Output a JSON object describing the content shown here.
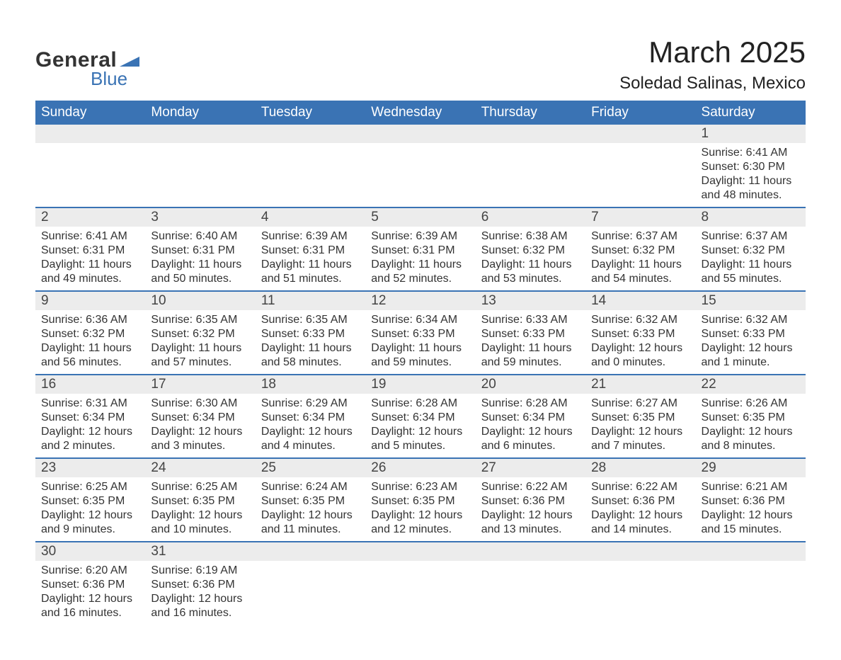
{
  "logo": {
    "word1": "General",
    "word2": "Blue",
    "flag_color": "#3a73b4",
    "text_color": "#333333"
  },
  "title": "March 2025",
  "location": "Soledad Salinas, Mexico",
  "colors": {
    "header_bg": "#3a73b4",
    "header_text": "#ffffff",
    "daynum_bg": "#ececec",
    "border": "#3a73b4",
    "body_text": "#333333"
  },
  "day_headers": [
    "Sunday",
    "Monday",
    "Tuesday",
    "Wednesday",
    "Thursday",
    "Friday",
    "Saturday"
  ],
  "weeks": [
    [
      null,
      null,
      null,
      null,
      null,
      null,
      {
        "n": "1",
        "sunrise": "Sunrise: 6:41 AM",
        "sunset": "Sunset: 6:30 PM",
        "daylight": "Daylight: 11 hours and 48 minutes."
      }
    ],
    [
      {
        "n": "2",
        "sunrise": "Sunrise: 6:41 AM",
        "sunset": "Sunset: 6:31 PM",
        "daylight": "Daylight: 11 hours and 49 minutes."
      },
      {
        "n": "3",
        "sunrise": "Sunrise: 6:40 AM",
        "sunset": "Sunset: 6:31 PM",
        "daylight": "Daylight: 11 hours and 50 minutes."
      },
      {
        "n": "4",
        "sunrise": "Sunrise: 6:39 AM",
        "sunset": "Sunset: 6:31 PM",
        "daylight": "Daylight: 11 hours and 51 minutes."
      },
      {
        "n": "5",
        "sunrise": "Sunrise: 6:39 AM",
        "sunset": "Sunset: 6:31 PM",
        "daylight": "Daylight: 11 hours and 52 minutes."
      },
      {
        "n": "6",
        "sunrise": "Sunrise: 6:38 AM",
        "sunset": "Sunset: 6:32 PM",
        "daylight": "Daylight: 11 hours and 53 minutes."
      },
      {
        "n": "7",
        "sunrise": "Sunrise: 6:37 AM",
        "sunset": "Sunset: 6:32 PM",
        "daylight": "Daylight: 11 hours and 54 minutes."
      },
      {
        "n": "8",
        "sunrise": "Sunrise: 6:37 AM",
        "sunset": "Sunset: 6:32 PM",
        "daylight": "Daylight: 11 hours and 55 minutes."
      }
    ],
    [
      {
        "n": "9",
        "sunrise": "Sunrise: 6:36 AM",
        "sunset": "Sunset: 6:32 PM",
        "daylight": "Daylight: 11 hours and 56 minutes."
      },
      {
        "n": "10",
        "sunrise": "Sunrise: 6:35 AM",
        "sunset": "Sunset: 6:32 PM",
        "daylight": "Daylight: 11 hours and 57 minutes."
      },
      {
        "n": "11",
        "sunrise": "Sunrise: 6:35 AM",
        "sunset": "Sunset: 6:33 PM",
        "daylight": "Daylight: 11 hours and 58 minutes."
      },
      {
        "n": "12",
        "sunrise": "Sunrise: 6:34 AM",
        "sunset": "Sunset: 6:33 PM",
        "daylight": "Daylight: 11 hours and 59 minutes."
      },
      {
        "n": "13",
        "sunrise": "Sunrise: 6:33 AM",
        "sunset": "Sunset: 6:33 PM",
        "daylight": "Daylight: 11 hours and 59 minutes."
      },
      {
        "n": "14",
        "sunrise": "Sunrise: 6:32 AM",
        "sunset": "Sunset: 6:33 PM",
        "daylight": "Daylight: 12 hours and 0 minutes."
      },
      {
        "n": "15",
        "sunrise": "Sunrise: 6:32 AM",
        "sunset": "Sunset: 6:33 PM",
        "daylight": "Daylight: 12 hours and 1 minute."
      }
    ],
    [
      {
        "n": "16",
        "sunrise": "Sunrise: 6:31 AM",
        "sunset": "Sunset: 6:34 PM",
        "daylight": "Daylight: 12 hours and 2 minutes."
      },
      {
        "n": "17",
        "sunrise": "Sunrise: 6:30 AM",
        "sunset": "Sunset: 6:34 PM",
        "daylight": "Daylight: 12 hours and 3 minutes."
      },
      {
        "n": "18",
        "sunrise": "Sunrise: 6:29 AM",
        "sunset": "Sunset: 6:34 PM",
        "daylight": "Daylight: 12 hours and 4 minutes."
      },
      {
        "n": "19",
        "sunrise": "Sunrise: 6:28 AM",
        "sunset": "Sunset: 6:34 PM",
        "daylight": "Daylight: 12 hours and 5 minutes."
      },
      {
        "n": "20",
        "sunrise": "Sunrise: 6:28 AM",
        "sunset": "Sunset: 6:34 PM",
        "daylight": "Daylight: 12 hours and 6 minutes."
      },
      {
        "n": "21",
        "sunrise": "Sunrise: 6:27 AM",
        "sunset": "Sunset: 6:35 PM",
        "daylight": "Daylight: 12 hours and 7 minutes."
      },
      {
        "n": "22",
        "sunrise": "Sunrise: 6:26 AM",
        "sunset": "Sunset: 6:35 PM",
        "daylight": "Daylight: 12 hours and 8 minutes."
      }
    ],
    [
      {
        "n": "23",
        "sunrise": "Sunrise: 6:25 AM",
        "sunset": "Sunset: 6:35 PM",
        "daylight": "Daylight: 12 hours and 9 minutes."
      },
      {
        "n": "24",
        "sunrise": "Sunrise: 6:25 AM",
        "sunset": "Sunset: 6:35 PM",
        "daylight": "Daylight: 12 hours and 10 minutes."
      },
      {
        "n": "25",
        "sunrise": "Sunrise: 6:24 AM",
        "sunset": "Sunset: 6:35 PM",
        "daylight": "Daylight: 12 hours and 11 minutes."
      },
      {
        "n": "26",
        "sunrise": "Sunrise: 6:23 AM",
        "sunset": "Sunset: 6:35 PM",
        "daylight": "Daylight: 12 hours and 12 minutes."
      },
      {
        "n": "27",
        "sunrise": "Sunrise: 6:22 AM",
        "sunset": "Sunset: 6:36 PM",
        "daylight": "Daylight: 12 hours and 13 minutes."
      },
      {
        "n": "28",
        "sunrise": "Sunrise: 6:22 AM",
        "sunset": "Sunset: 6:36 PM",
        "daylight": "Daylight: 12 hours and 14 minutes."
      },
      {
        "n": "29",
        "sunrise": "Sunrise: 6:21 AM",
        "sunset": "Sunset: 6:36 PM",
        "daylight": "Daylight: 12 hours and 15 minutes."
      }
    ],
    [
      {
        "n": "30",
        "sunrise": "Sunrise: 6:20 AM",
        "sunset": "Sunset: 6:36 PM",
        "daylight": "Daylight: 12 hours and 16 minutes."
      },
      {
        "n": "31",
        "sunrise": "Sunrise: 6:19 AM",
        "sunset": "Sunset: 6:36 PM",
        "daylight": "Daylight: 12 hours and 16 minutes."
      },
      null,
      null,
      null,
      null,
      null
    ]
  ]
}
